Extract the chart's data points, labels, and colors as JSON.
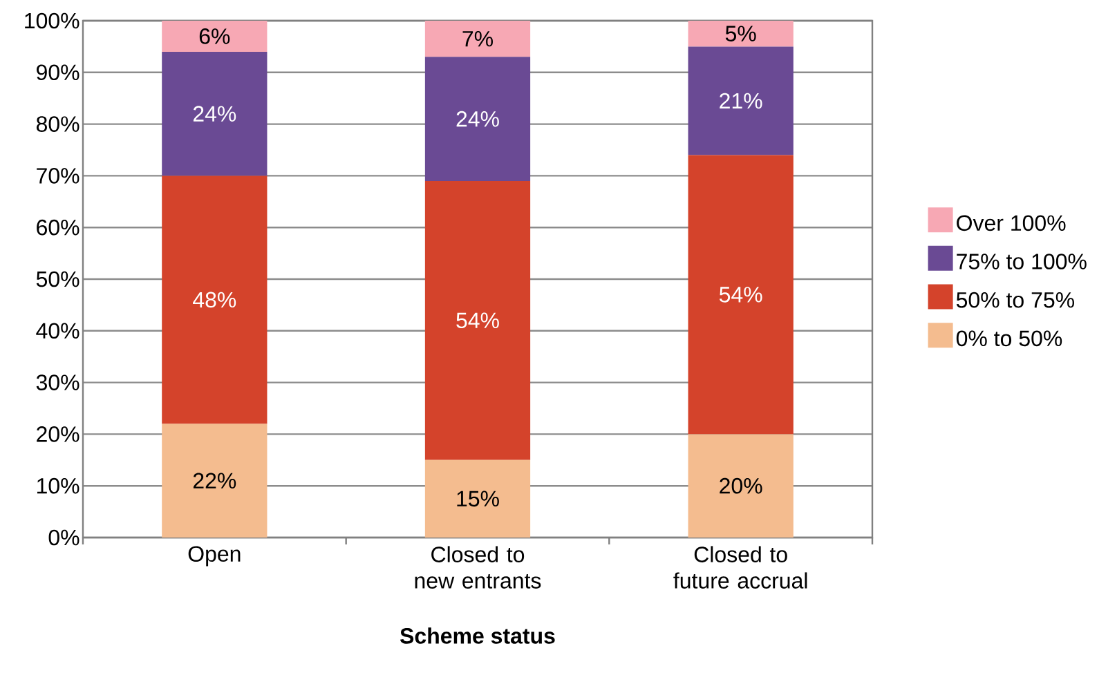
{
  "chart_data": {
    "type": "bar",
    "stacked": true,
    "xlabel": "Scheme status",
    "categories": [
      "Open",
      "Closed to new entrants",
      "Closed to future accrual"
    ],
    "series": [
      {
        "name": "0% to 50%",
        "color": "#f4bc8f",
        "values": [
          22,
          15,
          20
        ],
        "value_labels": [
          "22%",
          "15%",
          "20%"
        ]
      },
      {
        "name": "50% to 75%",
        "color": "#d4432b",
        "values": [
          48,
          54,
          54
        ],
        "value_labels": [
          "48%",
          "54%",
          "54%"
        ]
      },
      {
        "name": "75% to 100%",
        "color": "#6a4a94",
        "values": [
          24,
          24,
          21
        ],
        "value_labels": [
          "24%",
          "24%",
          "21%"
        ]
      },
      {
        "name": "Over 100%",
        "color": "#f7a8b4",
        "values": [
          6,
          7,
          5
        ],
        "value_labels": [
          "6%",
          "7%",
          "5%"
        ]
      }
    ],
    "ylim": [
      0,
      100
    ],
    "yticks": [
      {
        "value": 0,
        "label": "0%"
      },
      {
        "value": 10,
        "label": "10%"
      },
      {
        "value": 20,
        "label": "20%"
      },
      {
        "value": 30,
        "label": "30%"
      },
      {
        "value": 40,
        "label": "40%"
      },
      {
        "value": 50,
        "label": "50%"
      },
      {
        "value": 60,
        "label": "60%"
      },
      {
        "value": 70,
        "label": "70%"
      },
      {
        "value": 80,
        "label": "80%"
      },
      {
        "value": 90,
        "label": "90%"
      },
      {
        "value": 100,
        "label": "100%"
      }
    ],
    "grid": "y",
    "legend": "right"
  }
}
